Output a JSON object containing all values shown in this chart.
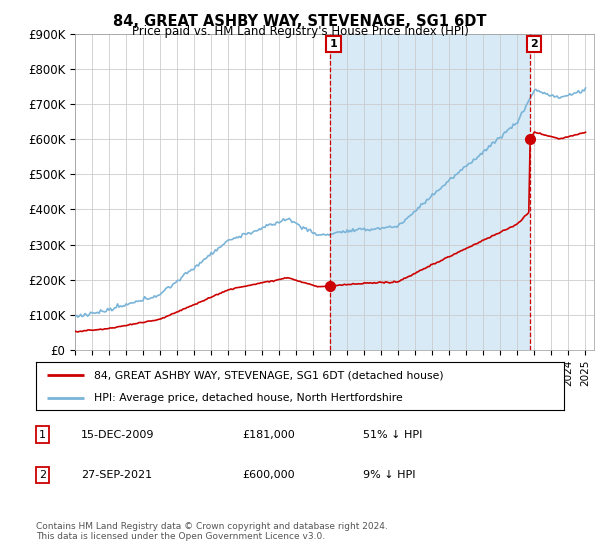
{
  "title": "84, GREAT ASHBY WAY, STEVENAGE, SG1 6DT",
  "subtitle": "Price paid vs. HM Land Registry's House Price Index (HPI)",
  "ylim": [
    0,
    900000
  ],
  "yticks": [
    0,
    100000,
    200000,
    300000,
    400000,
    500000,
    600000,
    700000,
    800000,
    900000
  ],
  "ytick_labels": [
    "£0",
    "£100K",
    "£200K",
    "£300K",
    "£400K",
    "£500K",
    "£600K",
    "£700K",
    "£800K",
    "£900K"
  ],
  "xlim_start": 1995,
  "xlim_end": 2025.5,
  "sale1_year": 2009.96,
  "sale1_price": 181000,
  "sale2_year": 2021.74,
  "sale2_price": 600000,
  "legend_line1": "84, GREAT ASHBY WAY, STEVENAGE, SG1 6DT (detached house)",
  "legend_line2": "HPI: Average price, detached house, North Hertfordshire",
  "footer": "Contains HM Land Registry data © Crown copyright and database right 2024.\nThis data is licensed under the Open Government Licence v3.0.",
  "hpi_color": "#7ab4d8",
  "sold_color": "#cc0000",
  "vline_color": "#cc0000",
  "shade_color": "#d8eaf5",
  "grid_color": "#cccccc",
  "annotation_box_color": "#cc0000"
}
